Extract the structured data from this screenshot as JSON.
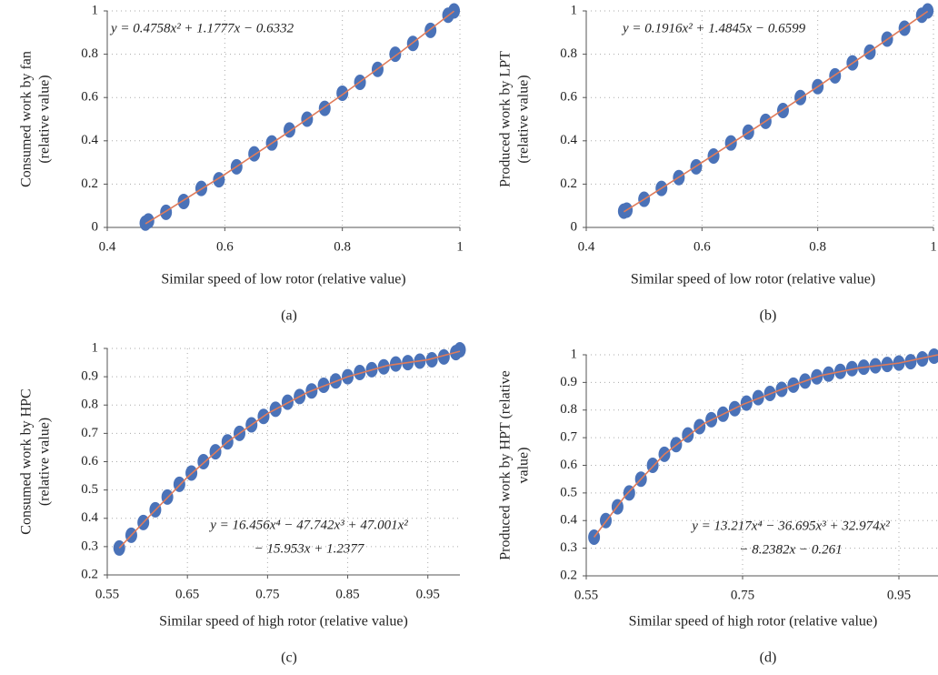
{
  "chart_data": [
    {
      "type": "scatter",
      "caption": "(a)",
      "xlabel": "Similar speed of low rotor (relative value)",
      "ylabel": [
        "Consumed work by fan",
        "(relative value)"
      ],
      "equation": [
        "y = 0.4758x² + 1.1777x − 0.6332"
      ],
      "xlim": [
        0.4,
        1
      ],
      "ylim": [
        0,
        1
      ],
      "xticks": [
        0.4,
        0.6,
        0.8,
        1
      ],
      "yticks": [
        0,
        0.2,
        0.4,
        0.6,
        0.8,
        1
      ],
      "grid": true,
      "series": [
        {
          "color": "#4a72b8",
          "x": [
            0.465,
            0.47,
            0.5,
            0.53,
            0.56,
            0.59,
            0.62,
            0.65,
            0.68,
            0.71,
            0.74,
            0.77,
            0.8,
            0.83,
            0.86,
            0.89,
            0.92,
            0.95,
            0.98,
            0.99
          ],
          "values": [
            0.02,
            0.03,
            0.07,
            0.12,
            0.18,
            0.22,
            0.28,
            0.34,
            0.39,
            0.45,
            0.5,
            0.55,
            0.62,
            0.67,
            0.73,
            0.8,
            0.85,
            0.91,
            0.98,
            1
          ]
        }
      ],
      "trendline": {
        "color": "#e07b5a",
        "x": [
          0.465,
          0.5,
          0.6,
          0.7,
          0.8,
          0.9,
          0.99
        ],
        "values": [
          0.017,
          0.075,
          0.245,
          0.425,
          0.613,
          0.812,
          0.999
        ]
      }
    },
    {
      "type": "scatter",
      "caption": "(b)",
      "xlabel": "Similar speed of low rotor (relative value)",
      "ylabel": [
        "Produced work by LPT",
        "(relative value)"
      ],
      "equation": [
        "y = 0.1916x² + 1.4845x − 0.6599"
      ],
      "xlim": [
        0.4,
        1
      ],
      "ylim": [
        0,
        1
      ],
      "xticks": [
        0.4,
        0.6,
        0.8,
        1
      ],
      "yticks": [
        0,
        0.2,
        0.4,
        0.6,
        0.8,
        1
      ],
      "grid": true,
      "series": [
        {
          "color": "#4a72b8",
          "x": [
            0.465,
            0.47,
            0.5,
            0.53,
            0.56,
            0.59,
            0.62,
            0.65,
            0.68,
            0.71,
            0.74,
            0.77,
            0.8,
            0.83,
            0.86,
            0.89,
            0.92,
            0.95,
            0.98,
            0.99
          ],
          "values": [
            0.075,
            0.08,
            0.13,
            0.18,
            0.23,
            0.28,
            0.33,
            0.39,
            0.44,
            0.49,
            0.54,
            0.6,
            0.65,
            0.7,
            0.76,
            0.81,
            0.87,
            0.92,
            0.98,
            1
          ]
        }
      ],
      "trendline": {
        "color": "#e07b5a",
        "x": [
          0.465,
          0.5,
          0.6,
          0.7,
          0.8,
          0.9,
          0.99
        ],
        "values": [
          0.072,
          0.13,
          0.3,
          0.473,
          0.65,
          0.831,
          0.998
        ]
      }
    },
    {
      "type": "scatter",
      "caption": "(c)",
      "xlabel": "Similar speed of high rotor (relative value)",
      "ylabel": [
        "Consumed work by HPC",
        "(relative value)"
      ],
      "equation": [
        "y = 16.456x⁴ − 47.742x³ + 47.001x²",
        "− 15.953x + 1.2377"
      ],
      "xlim": [
        0.55,
        0.99
      ],
      "ylim": [
        0.2,
        1
      ],
      "xticks": [
        0.55,
        0.65,
        0.75,
        0.85,
        0.95
      ],
      "yticks": [
        0.2,
        0.3,
        0.4,
        0.5,
        0.6,
        0.7,
        0.8,
        0.9,
        1
      ],
      "grid": true,
      "series": [
        {
          "color": "#4a72b8",
          "x": [
            0.565,
            0.58,
            0.595,
            0.61,
            0.625,
            0.64,
            0.655,
            0.67,
            0.685,
            0.7,
            0.715,
            0.73,
            0.745,
            0.76,
            0.775,
            0.79,
            0.805,
            0.82,
            0.835,
            0.85,
            0.865,
            0.88,
            0.895,
            0.91,
            0.925,
            0.94,
            0.955,
            0.97,
            0.985,
            0.99
          ],
          "values": [
            0.295,
            0.34,
            0.385,
            0.43,
            0.475,
            0.52,
            0.56,
            0.6,
            0.635,
            0.67,
            0.7,
            0.73,
            0.76,
            0.785,
            0.81,
            0.83,
            0.85,
            0.87,
            0.885,
            0.9,
            0.915,
            0.925,
            0.935,
            0.945,
            0.95,
            0.955,
            0.96,
            0.97,
            0.985,
            0.995
          ]
        }
      ],
      "trendline": {
        "color": "#e07b5a",
        "x": [
          0.565,
          0.6,
          0.65,
          0.7,
          0.75,
          0.8,
          0.85,
          0.9,
          0.95,
          0.99
        ],
        "values": [
          0.295,
          0.4,
          0.545,
          0.67,
          0.77,
          0.845,
          0.9,
          0.94,
          0.96,
          0.99
        ]
      }
    },
    {
      "type": "scatter",
      "caption": "(d)",
      "xlabel": "Similar speed of high rotor (relative value)",
      "ylabel": [
        "Produced work by HPT (relative",
        "value)"
      ],
      "equation": [
        "y = 13.217x⁴ − 36.695x³ + 32.974x²",
        "− 8.2382x − 0.261"
      ],
      "xlim": [
        0.55,
        1
      ],
      "ylim": [
        0.2,
        1
      ],
      "xticks": [
        0.55,
        0.75,
        0.95
      ],
      "yticks": [
        0.2,
        0.3,
        0.4,
        0.5,
        0.6,
        0.7,
        0.8,
        0.9,
        1
      ],
      "grid": true,
      "series": [
        {
          "color": "#4a72b8",
          "x": [
            0.56,
            0.575,
            0.59,
            0.605,
            0.62,
            0.635,
            0.65,
            0.665,
            0.68,
            0.695,
            0.71,
            0.725,
            0.74,
            0.755,
            0.77,
            0.785,
            0.8,
            0.815,
            0.83,
            0.845,
            0.86,
            0.875,
            0.89,
            0.905,
            0.92,
            0.935,
            0.95,
            0.965,
            0.98,
            0.995
          ],
          "values": [
            0.34,
            0.4,
            0.45,
            0.5,
            0.55,
            0.6,
            0.64,
            0.675,
            0.71,
            0.74,
            0.765,
            0.785,
            0.805,
            0.825,
            0.845,
            0.86,
            0.875,
            0.89,
            0.905,
            0.92,
            0.93,
            0.94,
            0.95,
            0.955,
            0.96,
            0.965,
            0.97,
            0.975,
            0.985,
            0.995
          ]
        }
      ],
      "trendline": {
        "color": "#e07b5a",
        "x": [
          0.56,
          0.6,
          0.65,
          0.7,
          0.75,
          0.8,
          0.85,
          0.9,
          0.95,
          1
        ],
        "values": [
          0.34,
          0.49,
          0.64,
          0.75,
          0.82,
          0.875,
          0.925,
          0.953,
          0.97,
          1
        ]
      }
    }
  ]
}
